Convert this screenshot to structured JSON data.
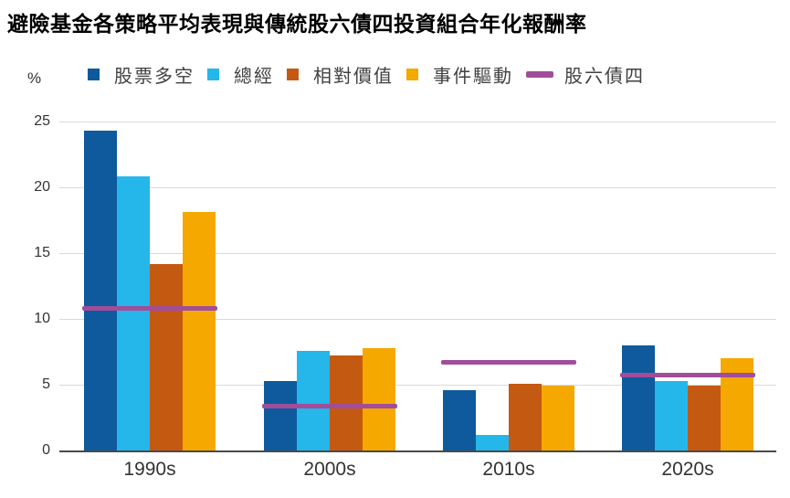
{
  "title": "避險基金各策略平均表現與傳統股六債四投資組合年化報酬率",
  "y_axis_unit": "%",
  "legend": {
    "items": [
      {
        "label": "股票多空",
        "color": "#0e5a9d",
        "marker": "square"
      },
      {
        "label": "總經",
        "color": "#25b6ea",
        "marker": "square"
      },
      {
        "label": "相對價值",
        "color": "#c45911",
        "marker": "square"
      },
      {
        "label": "事件驅動",
        "color": "#f5a800",
        "marker": "square"
      },
      {
        "label": "股六債四",
        "color": "#a14d9a",
        "marker": "line"
      }
    ]
  },
  "chart_data": {
    "type": "bar",
    "title": "避險基金各策略平均表現與傳統股六債四投資組合年化報酬率",
    "categories": [
      "1990s",
      "2000s",
      "2010s",
      "2020s"
    ],
    "series": [
      {
        "name": "股票多空",
        "type": "bar",
        "color": "#0e5a9d",
        "values": [
          24.3,
          5.3,
          4.6,
          8.0
        ]
      },
      {
        "name": "總經",
        "type": "bar",
        "color": "#25b6ea",
        "values": [
          20.8,
          7.6,
          1.2,
          5.3
        ]
      },
      {
        "name": "相對價值",
        "type": "bar",
        "color": "#c45911",
        "values": [
          14.2,
          7.2,
          5.1,
          4.9
        ]
      },
      {
        "name": "事件驅動",
        "type": "bar",
        "color": "#f5a800",
        "values": [
          18.1,
          7.8,
          4.9,
          7.0
        ]
      },
      {
        "name": "股六債四",
        "type": "line",
        "color": "#a14d9a",
        "values": [
          10.8,
          3.4,
          6.7,
          5.7
        ]
      }
    ],
    "xlabel": "",
    "ylabel": "%",
    "ylim": [
      0,
      25
    ],
    "yticks": [
      0,
      5,
      10,
      15,
      20,
      25
    ],
    "grid": true,
    "legend_position": "top",
    "colors": {
      "gridline": "#d9d9d9",
      "axis_line": "#4a4a4a",
      "title_text": "#000000",
      "label_text": "#333333",
      "legend_text": "#404040"
    }
  }
}
